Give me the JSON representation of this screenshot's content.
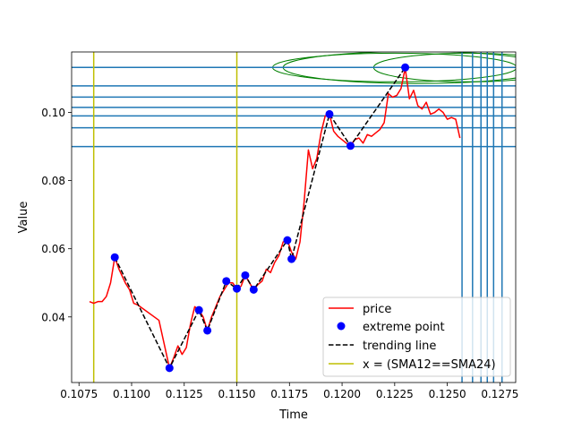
{
  "chart_data": {
    "type": "line",
    "title": "",
    "xlabel": "Time",
    "ylabel": "Value",
    "xlim": [
      0.10715,
      0.12825
    ],
    "ylim": [
      0.02075,
      0.11775
    ],
    "x_ticks": [
      0.1075,
      0.11,
      0.1125,
      0.115,
      0.1175,
      0.12,
      0.1225,
      0.125,
      0.1275
    ],
    "x_tick_labels": [
      "0.1075",
      "0.1100",
      "0.1125",
      "0.1150",
      "0.1175",
      "0.1200",
      "0.1225",
      "0.1250",
      "0.1275"
    ],
    "y_ticks": [
      0.04,
      0.06,
      0.08,
      0.1
    ],
    "y_tick_labels": [
      "0.04",
      "0.06",
      "0.08",
      "0.10"
    ],
    "grid": false,
    "legend_position": "lower right",
    "series": [
      {
        "name": "price",
        "kind": "line",
        "color": "#ff0000",
        "x": [
          0.108,
          0.1082,
          0.1084,
          0.1086,
          0.1088,
          0.109,
          0.1092,
          0.1094,
          0.1097,
          0.1099,
          0.1101,
          0.1103,
          0.1113,
          0.1118,
          0.112,
          0.1122,
          0.1124,
          0.1126,
          0.1128,
          0.113,
          0.1132,
          0.1134,
          0.1136,
          0.1138,
          0.114,
          0.1142,
          0.1144,
          0.1146,
          0.1148,
          0.115,
          0.1152,
          0.1154,
          0.1156,
          0.1158,
          0.116,
          0.1162,
          0.1164,
          0.1166,
          0.1168,
          0.117,
          0.1172,
          0.1174,
          0.1176,
          0.1178,
          0.118,
          0.1182,
          0.1184,
          0.1186,
          0.1188,
          0.119,
          0.1192,
          0.1194,
          0.1196,
          0.1198,
          0.12,
          0.1202,
          0.1204,
          0.1206,
          0.1208,
          0.121,
          0.1212,
          0.1214,
          0.1216,
          0.1218,
          0.122,
          0.1222,
          0.1224,
          0.1226,
          0.1228,
          0.123,
          0.1232,
          0.1234,
          0.1236,
          0.1238,
          0.124,
          0.1242,
          0.1244,
          0.1246,
          0.1248,
          0.125,
          0.1252,
          0.1254,
          0.1256
        ],
        "y": [
          0.0445,
          0.044,
          0.0445,
          0.0445,
          0.046,
          0.05,
          0.0575,
          0.054,
          0.05,
          0.048,
          0.044,
          0.0435,
          0.039,
          0.025,
          0.028,
          0.0315,
          0.029,
          0.031,
          0.038,
          0.043,
          0.042,
          0.04,
          0.036,
          0.04,
          0.043,
          0.046,
          0.048,
          0.05,
          0.05,
          0.0483,
          0.049,
          0.0522,
          0.05,
          0.048,
          0.0495,
          0.0505,
          0.054,
          0.053,
          0.056,
          0.058,
          0.062,
          0.0625,
          0.059,
          0.057,
          0.062,
          0.074,
          0.089,
          0.0835,
          0.0865,
          0.094,
          0.099,
          0.0995,
          0.0945,
          0.093,
          0.092,
          0.091,
          0.0902,
          0.092,
          0.0925,
          0.091,
          0.0935,
          0.093,
          0.094,
          0.095,
          0.097,
          0.1055,
          0.1045,
          0.105,
          0.107,
          0.113,
          0.104,
          0.1065,
          0.102,
          0.101,
          0.103,
          0.0995,
          0.1,
          0.101,
          0.1,
          0.098,
          0.0985,
          0.098,
          0.0925
        ]
      },
      {
        "name": "extreme point",
        "kind": "scatter",
        "color": "#0000ff",
        "x": [
          0.1092,
          0.1118,
          0.1132,
          0.1136,
          0.1145,
          0.115,
          0.1154,
          0.1158,
          0.1174,
          0.1176,
          0.1194,
          0.1204,
          0.123
        ],
        "y": [
          0.0575,
          0.025,
          0.042,
          0.036,
          0.0505,
          0.0483,
          0.0522,
          0.048,
          0.0625,
          0.057,
          0.0995,
          0.0902,
          0.1132
        ]
      },
      {
        "name": "trending line",
        "kind": "line-dashed",
        "color": "#000000",
        "x": [
          0.1092,
          0.1118,
          0.1132,
          0.1136,
          0.1145,
          0.115,
          0.1154,
          0.1158,
          0.1174,
          0.1176,
          0.1194,
          0.1204,
          0.123
        ],
        "y": [
          0.0575,
          0.025,
          0.042,
          0.036,
          0.0505,
          0.0483,
          0.0522,
          0.048,
          0.0625,
          0.057,
          0.0995,
          0.0902,
          0.1132
        ]
      }
    ],
    "vertical_lines": {
      "name": "x = (SMA12==SMA24)",
      "color": "#bfbf00",
      "x": [
        0.1082,
        0.115
      ]
    },
    "horizontal_levels": {
      "color": "#1f77b4",
      "y": [
        0.09,
        0.0955,
        0.099,
        0.1015,
        0.1045,
        0.1078,
        0.1132
      ]
    },
    "vertical_levels": {
      "color": "#1f77b4",
      "x": [
        0.1257,
        0.1262,
        0.1266,
        0.1269,
        0.1272,
        0.1276
      ]
    },
    "ellipses": {
      "color": "#008000",
      "cy": 0.1132,
      "items": [
        {
          "cx": 0.1225,
          "rx": 0.0058,
          "ry": 0.0042
        },
        {
          "cx": 0.1235,
          "rx": 0.0063,
          "ry": 0.0047
        },
        {
          "cx": 0.126,
          "rx": 0.0045,
          "ry": 0.0042
        }
      ]
    }
  }
}
